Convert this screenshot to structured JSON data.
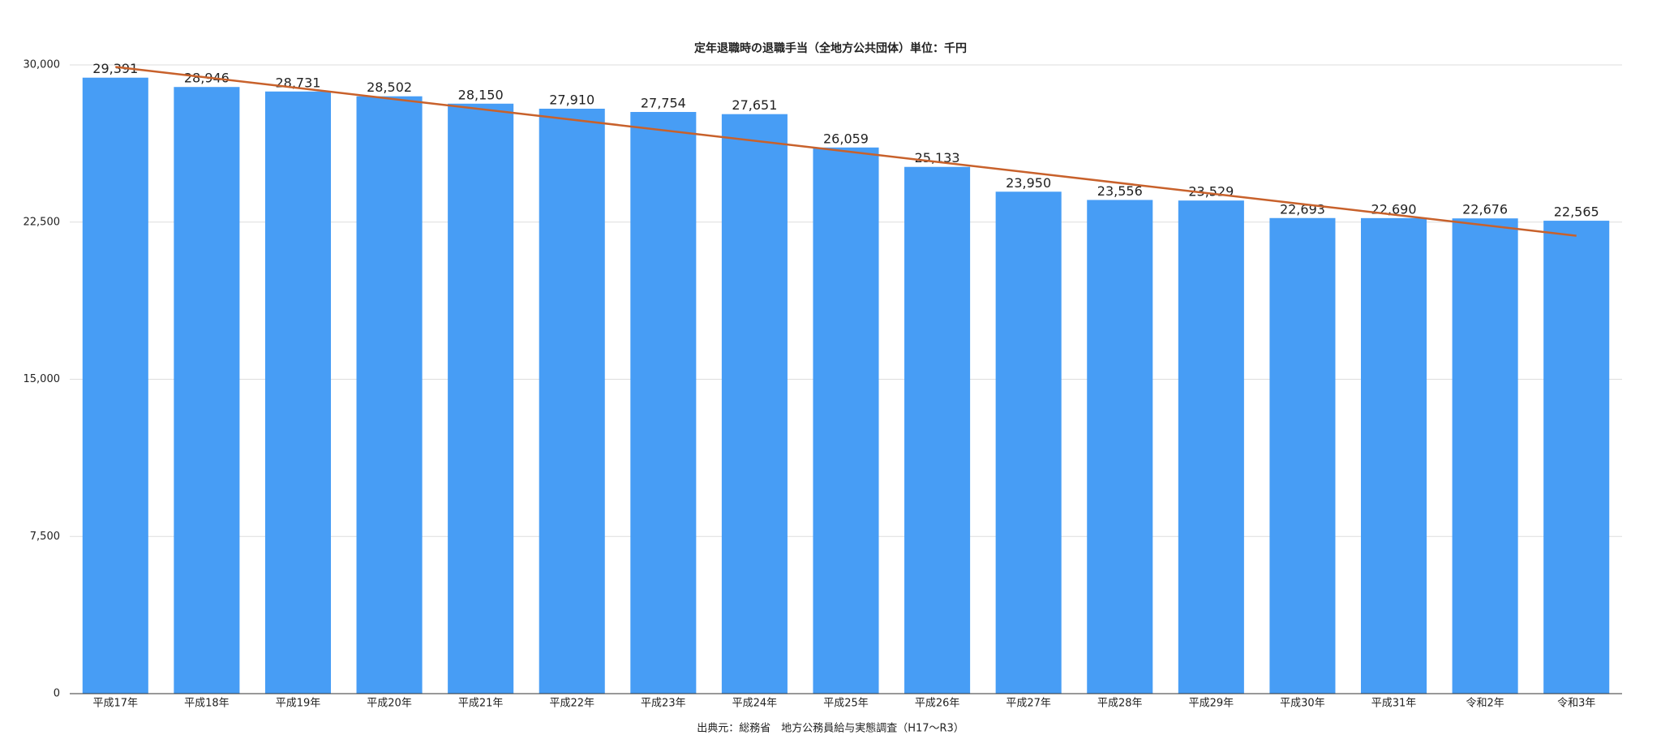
{
  "chart_data": {
    "type": "bar",
    "title": "定年退職時の退職手当（全地方公共団体）単位：千円",
    "source": "出典元：総務省　地方公務員給与実態調査（H17〜R3）",
    "categories": [
      "平成17年",
      "平成18年",
      "平成19年",
      "平成20年",
      "平成21年",
      "平成22年",
      "平成23年",
      "平成24年",
      "平成25年",
      "平成26年",
      "平成27年",
      "平成28年",
      "平成29年",
      "平成30年",
      "平成31年",
      "令和2年",
      "令和3年"
    ],
    "values": [
      29391,
      28946,
      28731,
      28502,
      28150,
      27910,
      27754,
      27651,
      26059,
      25133,
      23950,
      23556,
      23529,
      22693,
      22690,
      22676,
      22565
    ],
    "value_labels": [
      "29,391",
      "28,946",
      "28,731",
      "28,502",
      "28,150",
      "27,910",
      "27,754",
      "27,651",
      "26,059",
      "25,133",
      "23,950",
      "23,556",
      "23,529",
      "22,693",
      "22,690",
      "22,676",
      "22,565"
    ],
    "color": "#479df5",
    "trendline": true,
    "trendline_color": "#c8612b",
    "ylim": [
      0,
      30000
    ],
    "yticks": [
      0,
      {
        "value": 7500,
        "label": "7,500"
      },
      {
        "value": 15000,
        "label": "15,000"
      },
      {
        "value": 22500,
        "label": "22,500"
      },
      {
        "value": 30000,
        "label": "30,000"
      }
    ],
    "grid": true
  }
}
